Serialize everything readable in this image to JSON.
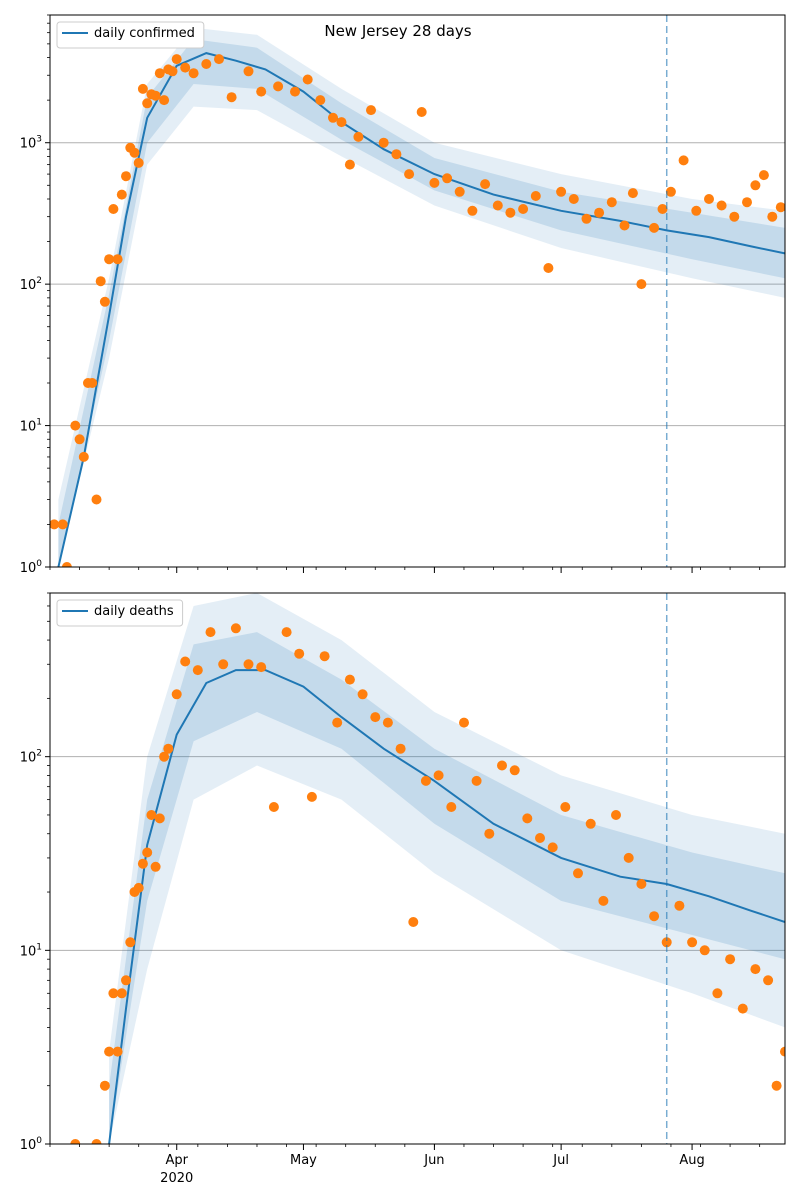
{
  "figure": {
    "title": "New Jersey 28 days",
    "colors": {
      "line": "#1f77b4",
      "band": "#1f77b4",
      "points": "#ff7f0e",
      "grid": "#b0b0b0",
      "forecast_marker": "#1f77b4"
    },
    "x_ticks": [
      {
        "date": "2020-04-01",
        "label": "Apr",
        "sublabel": "2020"
      },
      {
        "date": "2020-05-01",
        "label": "May",
        "sublabel": ""
      },
      {
        "date": "2020-06-01",
        "label": "Jun",
        "sublabel": ""
      },
      {
        "date": "2020-07-01",
        "label": "Jul",
        "sublabel": ""
      },
      {
        "date": "2020-08-01",
        "label": "Aug",
        "sublabel": ""
      }
    ],
    "x_range": [
      "2020-03-02",
      "2020-08-23"
    ],
    "forecast_start": "2020-07-26"
  },
  "chart_data": [
    {
      "type": "line",
      "legend": "daily confirmed",
      "legend_placement": "upper-left",
      "yscale": "log",
      "ylim": [
        1,
        8000
      ],
      "y_ticks": [
        {
          "value": 1,
          "label": "10^0"
        },
        {
          "value": 10,
          "label": "10^1"
        },
        {
          "value": 100,
          "label": "10^2"
        },
        {
          "value": 1000,
          "label": "10^3"
        }
      ],
      "grid": "horizontal",
      "model_curve": {
        "name": "daily confirmed",
        "x": [
          "2020-03-04",
          "2020-03-10",
          "2020-03-16",
          "2020-03-20",
          "2020-03-25",
          "2020-04-01",
          "2020-04-08",
          "2020-04-15",
          "2020-04-22",
          "2020-05-01",
          "2020-05-10",
          "2020-05-20",
          "2020-06-01",
          "2020-06-15",
          "2020-07-01",
          "2020-07-15",
          "2020-07-26",
          "2020-08-05",
          "2020-08-15",
          "2020-08-23"
        ],
        "y": [
          1,
          6,
          60,
          300,
          1500,
          3500,
          4300,
          3800,
          3300,
          2300,
          1400,
          900,
          600,
          430,
          330,
          280,
          240,
          215,
          185,
          165
        ]
      },
      "points": {
        "x": [
          "2020-03-03",
          "2020-03-05",
          "2020-03-06",
          "2020-03-08",
          "2020-03-09",
          "2020-03-10",
          "2020-03-11",
          "2020-03-12",
          "2020-03-13",
          "2020-03-14",
          "2020-03-15",
          "2020-03-16",
          "2020-03-17",
          "2020-03-18",
          "2020-03-19",
          "2020-03-20",
          "2020-03-21",
          "2020-03-22",
          "2020-03-23",
          "2020-03-24",
          "2020-03-25",
          "2020-03-26",
          "2020-03-27",
          "2020-03-28",
          "2020-03-29",
          "2020-03-30",
          "2020-03-31",
          "2020-04-01",
          "2020-04-03",
          "2020-04-05",
          "2020-04-08",
          "2020-04-11",
          "2020-04-14",
          "2020-04-18",
          "2020-04-21",
          "2020-04-25",
          "2020-04-29",
          "2020-05-02",
          "2020-05-05",
          "2020-05-08",
          "2020-05-10",
          "2020-05-12",
          "2020-05-14",
          "2020-05-17",
          "2020-05-20",
          "2020-05-23",
          "2020-05-26",
          "2020-05-29",
          "2020-06-01",
          "2020-06-04",
          "2020-06-07",
          "2020-06-10",
          "2020-06-13",
          "2020-06-16",
          "2020-06-19",
          "2020-06-22",
          "2020-06-25",
          "2020-06-28",
          "2020-07-01",
          "2020-07-04",
          "2020-07-07",
          "2020-07-10",
          "2020-07-13",
          "2020-07-16",
          "2020-07-18",
          "2020-07-20",
          "2020-07-23",
          "2020-07-25",
          "2020-07-27",
          "2020-07-30",
          "2020-08-02",
          "2020-08-05",
          "2020-08-08",
          "2020-08-11",
          "2020-08-14",
          "2020-08-16",
          "2020-08-18",
          "2020-08-20",
          "2020-08-22"
        ],
        "y": [
          2,
          2,
          1,
          10,
          8,
          6,
          20,
          20,
          3,
          105,
          75,
          150,
          340,
          150,
          430,
          580,
          920,
          850,
          720,
          2400,
          1900,
          2200,
          2150,
          3100,
          2000,
          3300,
          3200,
          3900,
          3400,
          3100,
          3600,
          3900,
          2100,
          3200,
          2300,
          2500,
          2300,
          2800,
          2000,
          1500,
          1400,
          700,
          1100,
          1700,
          1000,
          830,
          600,
          1650,
          520,
          560,
          450,
          330,
          510,
          360,
          320,
          340,
          420,
          130,
          450,
          400,
          290,
          320,
          380,
          260,
          440,
          100,
          250,
          340,
          450,
          750,
          330,
          400,
          360,
          300,
          380,
          500,
          590,
          300,
          350
        ],
        "note": "approximate readings"
      },
      "bands": [
        {
          "x": [
            "2020-03-04",
            "2020-03-16",
            "2020-03-25",
            "2020-04-05",
            "2020-04-20",
            "2020-05-10",
            "2020-06-01",
            "2020-07-01",
            "2020-08-01",
            "2020-08-23"
          ],
          "lower": [
            1,
            30,
            700,
            1800,
            1700,
            800,
            360,
            180,
            110,
            80
          ],
          "upper": [
            3,
            110,
            2600,
            6500,
            5800,
            2400,
            1000,
            600,
            400,
            330
          ]
        },
        {
          "x": [
            "2020-03-04",
            "2020-03-16",
            "2020-03-25",
            "2020-04-05",
            "2020-04-20",
            "2020-05-10",
            "2020-06-01",
            "2020-07-01",
            "2020-08-01",
            "2020-08-23"
          ],
          "lower": [
            1,
            40,
            1000,
            2600,
            2400,
            1050,
            460,
            240,
            150,
            110
          ],
          "upper": [
            2,
            85,
            2100,
            5400,
            4700,
            1900,
            780,
            450,
            320,
            250
          ]
        }
      ]
    },
    {
      "type": "line",
      "legend": "daily deaths",
      "legend_placement": "upper-left",
      "yscale": "log",
      "ylim": [
        1,
        700
      ],
      "y_ticks": [
        {
          "value": 1,
          "label": "10^0"
        },
        {
          "value": 10,
          "label": "10^1"
        },
        {
          "value": 100,
          "label": "10^2"
        }
      ],
      "grid": "horizontal",
      "model_curve": {
        "name": "daily deaths",
        "x": [
          "2020-03-16",
          "2020-03-20",
          "2020-03-25",
          "2020-04-01",
          "2020-04-08",
          "2020-04-15",
          "2020-04-22",
          "2020-05-01",
          "2020-05-10",
          "2020-05-20",
          "2020-06-01",
          "2020-06-15",
          "2020-07-01",
          "2020-07-15",
          "2020-07-26",
          "2020-08-05",
          "2020-08-15",
          "2020-08-23"
        ],
        "y": [
          1,
          5,
          35,
          130,
          240,
          280,
          280,
          230,
          160,
          110,
          75,
          45,
          30,
          24,
          22,
          19,
          16,
          14
        ]
      },
      "points": {
        "x": [
          "2020-03-08",
          "2020-03-13",
          "2020-03-15",
          "2020-03-16",
          "2020-03-17",
          "2020-03-18",
          "2020-03-19",
          "2020-03-20",
          "2020-03-21",
          "2020-03-22",
          "2020-03-23",
          "2020-03-24",
          "2020-03-25",
          "2020-03-26",
          "2020-03-27",
          "2020-03-28",
          "2020-03-29",
          "2020-03-30",
          "2020-04-01",
          "2020-04-03",
          "2020-04-06",
          "2020-04-09",
          "2020-04-12",
          "2020-04-15",
          "2020-04-18",
          "2020-04-21",
          "2020-04-24",
          "2020-04-27",
          "2020-04-30",
          "2020-05-03",
          "2020-05-06",
          "2020-05-09",
          "2020-05-12",
          "2020-05-15",
          "2020-05-18",
          "2020-05-21",
          "2020-05-24",
          "2020-05-27",
          "2020-05-30",
          "2020-06-02",
          "2020-06-05",
          "2020-06-08",
          "2020-06-11",
          "2020-06-14",
          "2020-06-17",
          "2020-06-20",
          "2020-06-23",
          "2020-06-26",
          "2020-06-29",
          "2020-07-02",
          "2020-07-05",
          "2020-07-08",
          "2020-07-11",
          "2020-07-14",
          "2020-07-17",
          "2020-07-20",
          "2020-07-23",
          "2020-07-26",
          "2020-07-29",
          "2020-08-01",
          "2020-08-04",
          "2020-08-07",
          "2020-08-10",
          "2020-08-13",
          "2020-08-16",
          "2020-08-19",
          "2020-08-21",
          "2020-08-23"
        ],
        "y": [
          1,
          1,
          2,
          3,
          6,
          3,
          6,
          7,
          11,
          20,
          21,
          28,
          32,
          50,
          27,
          48,
          100,
          110,
          210,
          310,
          280,
          440,
          300,
          460,
          300,
          290,
          55,
          440,
          340,
          62,
          330,
          150,
          250,
          210,
          160,
          150,
          110,
          14,
          75,
          80,
          55,
          150,
          75,
          40,
          90,
          85,
          48,
          38,
          34,
          55,
          25,
          45,
          18,
          50,
          30,
          22,
          15,
          11,
          17,
          11,
          10,
          6,
          9,
          5,
          8,
          7,
          2,
          3
        ],
        "note": "approximate readings"
      },
      "bands": [
        {
          "x": [
            "2020-03-16",
            "2020-03-25",
            "2020-04-05",
            "2020-04-20",
            "2020-05-10",
            "2020-06-01",
            "2020-07-01",
            "2020-08-01",
            "2020-08-23"
          ],
          "lower": [
            1,
            8,
            60,
            90,
            60,
            25,
            10,
            6,
            4
          ],
          "upper": [
            3,
            100,
            600,
            700,
            400,
            170,
            80,
            50,
            40
          ]
        },
        {
          "x": [
            "2020-03-16",
            "2020-03-25",
            "2020-04-05",
            "2020-04-20",
            "2020-05-10",
            "2020-06-01",
            "2020-07-01",
            "2020-08-01",
            "2020-08-23"
          ],
          "lower": [
            1,
            18,
            120,
            170,
            110,
            45,
            18,
            12,
            9
          ],
          "upper": [
            2,
            60,
            380,
            440,
            250,
            110,
            50,
            32,
            25
          ]
        }
      ]
    }
  ]
}
